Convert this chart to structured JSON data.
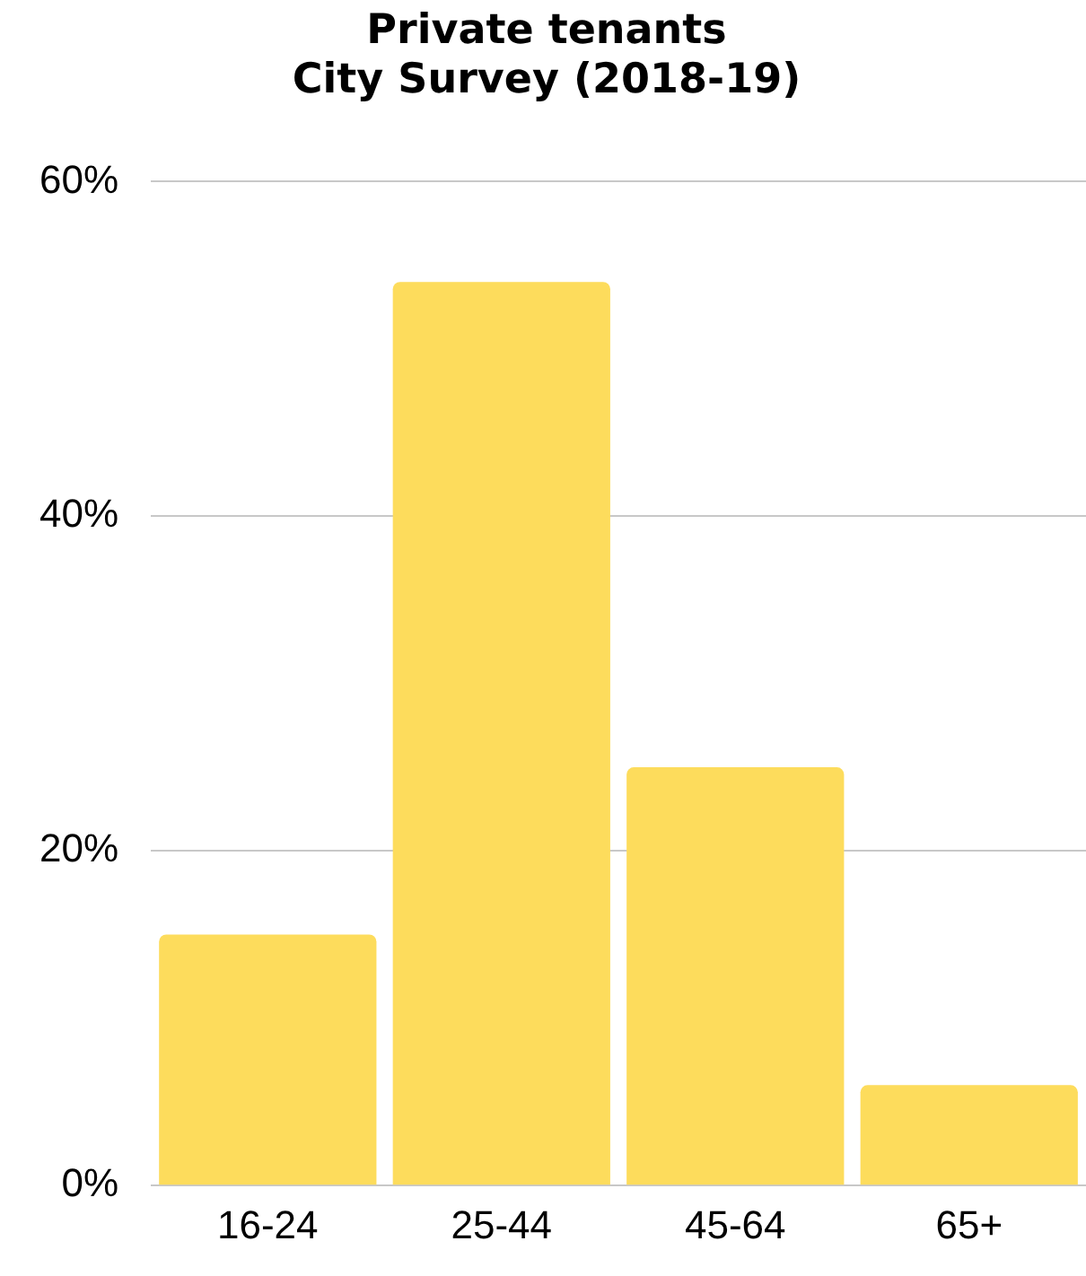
{
  "chart_data": {
    "type": "bar",
    "title": [
      "Private tenants",
      "City Survey (2018-19)"
    ],
    "categories": [
      "16-24",
      "25-44",
      "45-64",
      "65+"
    ],
    "values": [
      15,
      54,
      25,
      6
    ],
    "color": "#fddc5c",
    "ylim": [
      0,
      60
    ],
    "yticks": [
      {
        "value": 0,
        "label": "0%"
      },
      {
        "value": 20,
        "label": "20%"
      },
      {
        "value": 40,
        "label": "40%"
      },
      {
        "value": 60,
        "label": "60%"
      }
    ],
    "grid": "y",
    "legend": false
  }
}
